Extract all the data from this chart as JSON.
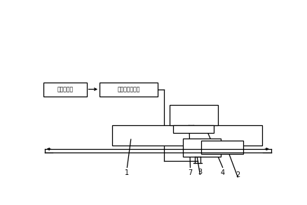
{
  "bg_color": "#ffffff",
  "line_color": "#000000",
  "labels": {
    "box1": "模型处理器",
    "box2": "数据采集分析仪"
  },
  "font_size": 7
}
